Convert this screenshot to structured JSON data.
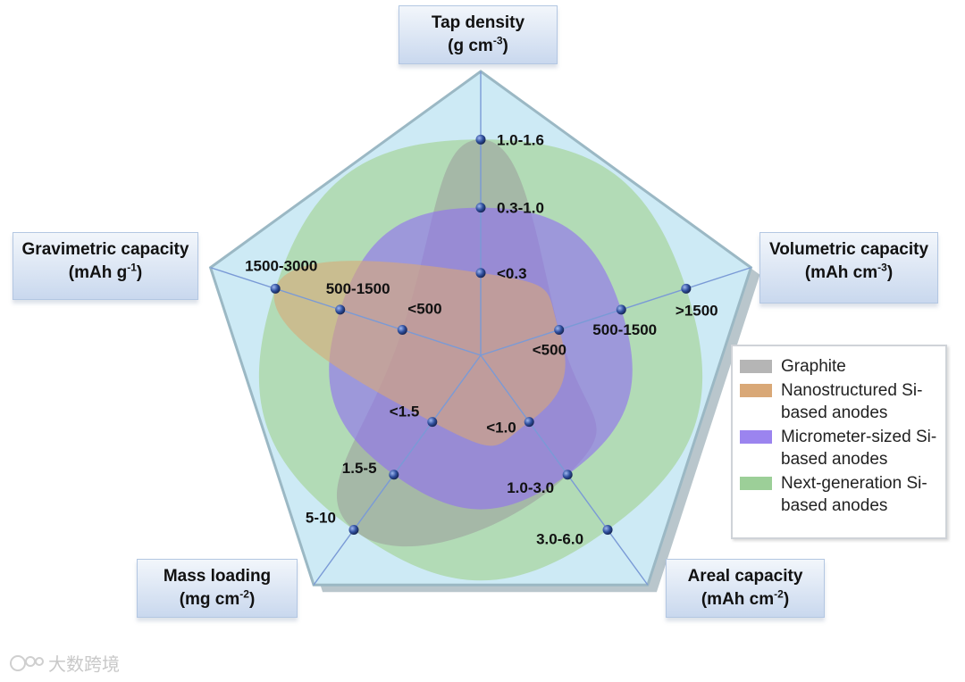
{
  "chart_data": {
    "type": "radar",
    "axes": [
      {
        "key": "tap",
        "label_line1": "Tap density",
        "label_line2_base": "g cm",
        "label_line2_sup": "-3",
        "ticks": [
          "<0.3",
          "0.3-1.0",
          "1.0-1.6"
        ]
      },
      {
        "key": "vol",
        "label_line1": "Volumetric capacity",
        "label_line2_base": "mAh cm",
        "label_line2_sup": "-3",
        "ticks": [
          "<500",
          "500-1500",
          ">1500"
        ]
      },
      {
        "key": "areal",
        "label_line1": "Areal capacity",
        "label_line2_base": "mAh cm",
        "label_line2_sup": "-2",
        "ticks": [
          "<1.0",
          "1.0-3.0",
          "3.0-6.0"
        ]
      },
      {
        "key": "mass",
        "label_line1": "Mass loading",
        "label_line2_base": "mg cm",
        "label_line2_sup": "-2",
        "ticks": [
          "<1.5",
          "1.5-5",
          "5-10"
        ]
      },
      {
        "key": "grav",
        "label_line1": "Gravimetric capacity",
        "label_line2_base": "mAh g",
        "label_line2_sup": "-1",
        "ticks": [
          "<500",
          "500-1500",
          "1500-3000"
        ]
      }
    ],
    "series": [
      {
        "name": "Graphite",
        "color": "#9a9a9a",
        "values": [
          3,
          1,
          2,
          3,
          1
        ]
      },
      {
        "name": "Nanostructured Si-based anodes",
        "color": "#d9a877",
        "values": [
          1,
          1,
          1,
          1,
          3
        ]
      },
      {
        "name": "Micrometer-sized Si-based anodes",
        "color": "#8f6ff0",
        "values": [
          2,
          2,
          2,
          2,
          2
        ]
      },
      {
        "name": "Next-generation Si-based anodes",
        "color": "#a8d6a0",
        "values": [
          3,
          3,
          3,
          3,
          3
        ]
      }
    ]
  },
  "legend": [
    {
      "line1": "Graphite",
      "line2": "",
      "color": "#b5b5b5"
    },
    {
      "line1": "Nanostructured Si-",
      "line2": "based anodes",
      "color": "#d9a877"
    },
    {
      "line1": "Micrometer-sized Si-",
      "line2": "based anodes",
      "color": "#9b84ef"
    },
    {
      "line1": "Next-generation Si-",
      "line2": "based anodes",
      "color": "#9ccf98"
    }
  ],
  "watermark": "大数跨境",
  "colors": {
    "pentagon_fill": "#cdeaf5",
    "pentagon_edge": "#9bb8c4",
    "axis": "#7a9ad6",
    "marker": "#2a4a9a"
  }
}
